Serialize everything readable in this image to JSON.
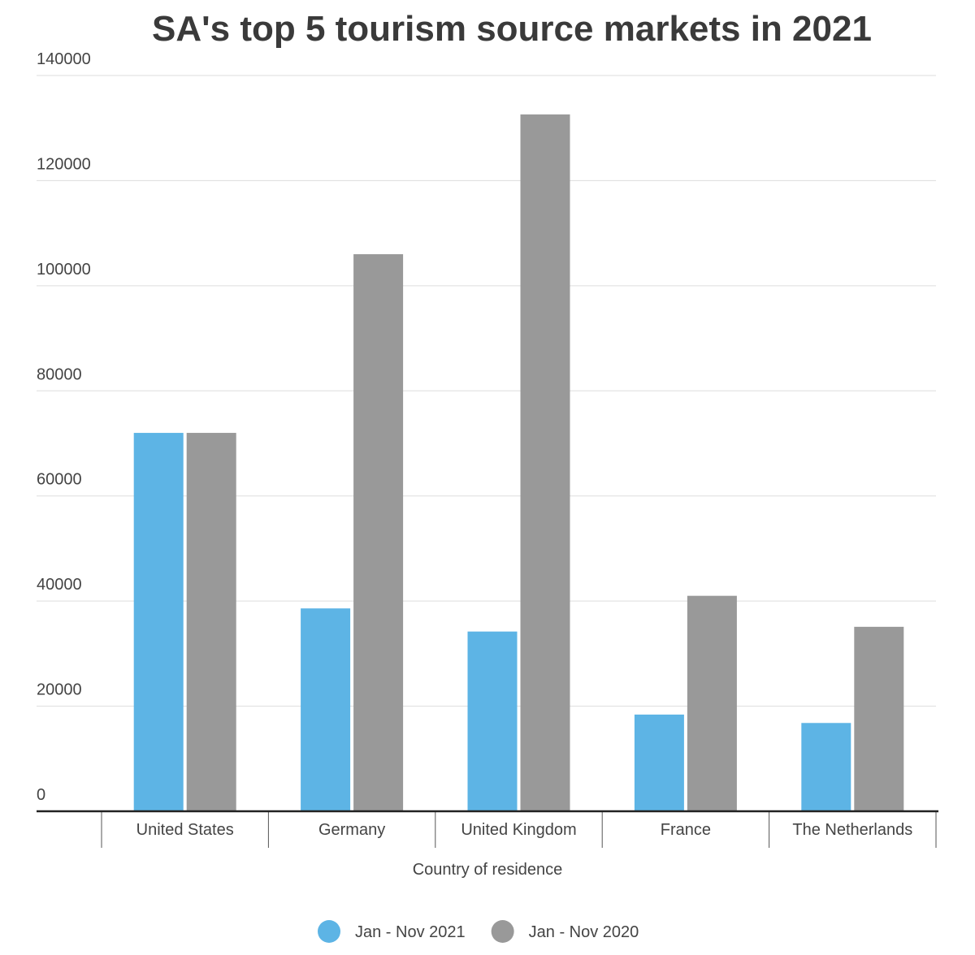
{
  "chart_data": {
    "type": "bar",
    "title": "SA's top 5 tourism source markets in 2021",
    "x_label": "Country of residence",
    "categories": [
      "United States",
      "Germany",
      "United Kingdom",
      "France",
      "The Netherlands"
    ],
    "series": [
      {
        "name": "Jan - Nov 2021",
        "color": "#5db4e5",
        "values": [
          72000,
          38600,
          34200,
          18400,
          16800
        ]
      },
      {
        "name": "Jan - Nov 2020",
        "color": "#999999",
        "values": [
          72000,
          106000,
          132600,
          41000,
          35100
        ]
      }
    ],
    "ylim": [
      0,
      140000
    ],
    "yticks": [
      0,
      20000,
      40000,
      60000,
      80000,
      100000,
      120000,
      140000
    ],
    "grid": true
  }
}
